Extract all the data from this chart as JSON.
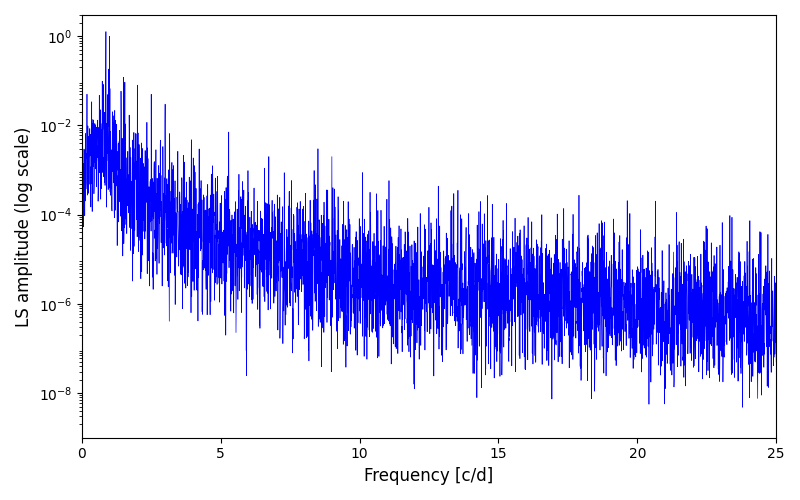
{
  "xlabel": "Frequency [c/d]",
  "ylabel": "LS amplitude (log scale)",
  "xlim": [
    0,
    25
  ],
  "ylim": [
    1e-09,
    3
  ],
  "line_color": "#0000ff",
  "background_color": "#ffffff",
  "yscale": "log",
  "figsize": [
    8.0,
    5.0
  ],
  "dpi": 100,
  "xticks": [
    0,
    5,
    10,
    15,
    20,
    25
  ],
  "yticks": [
    1e-08,
    1e-06,
    0.0001,
    0.01,
    1.0
  ]
}
